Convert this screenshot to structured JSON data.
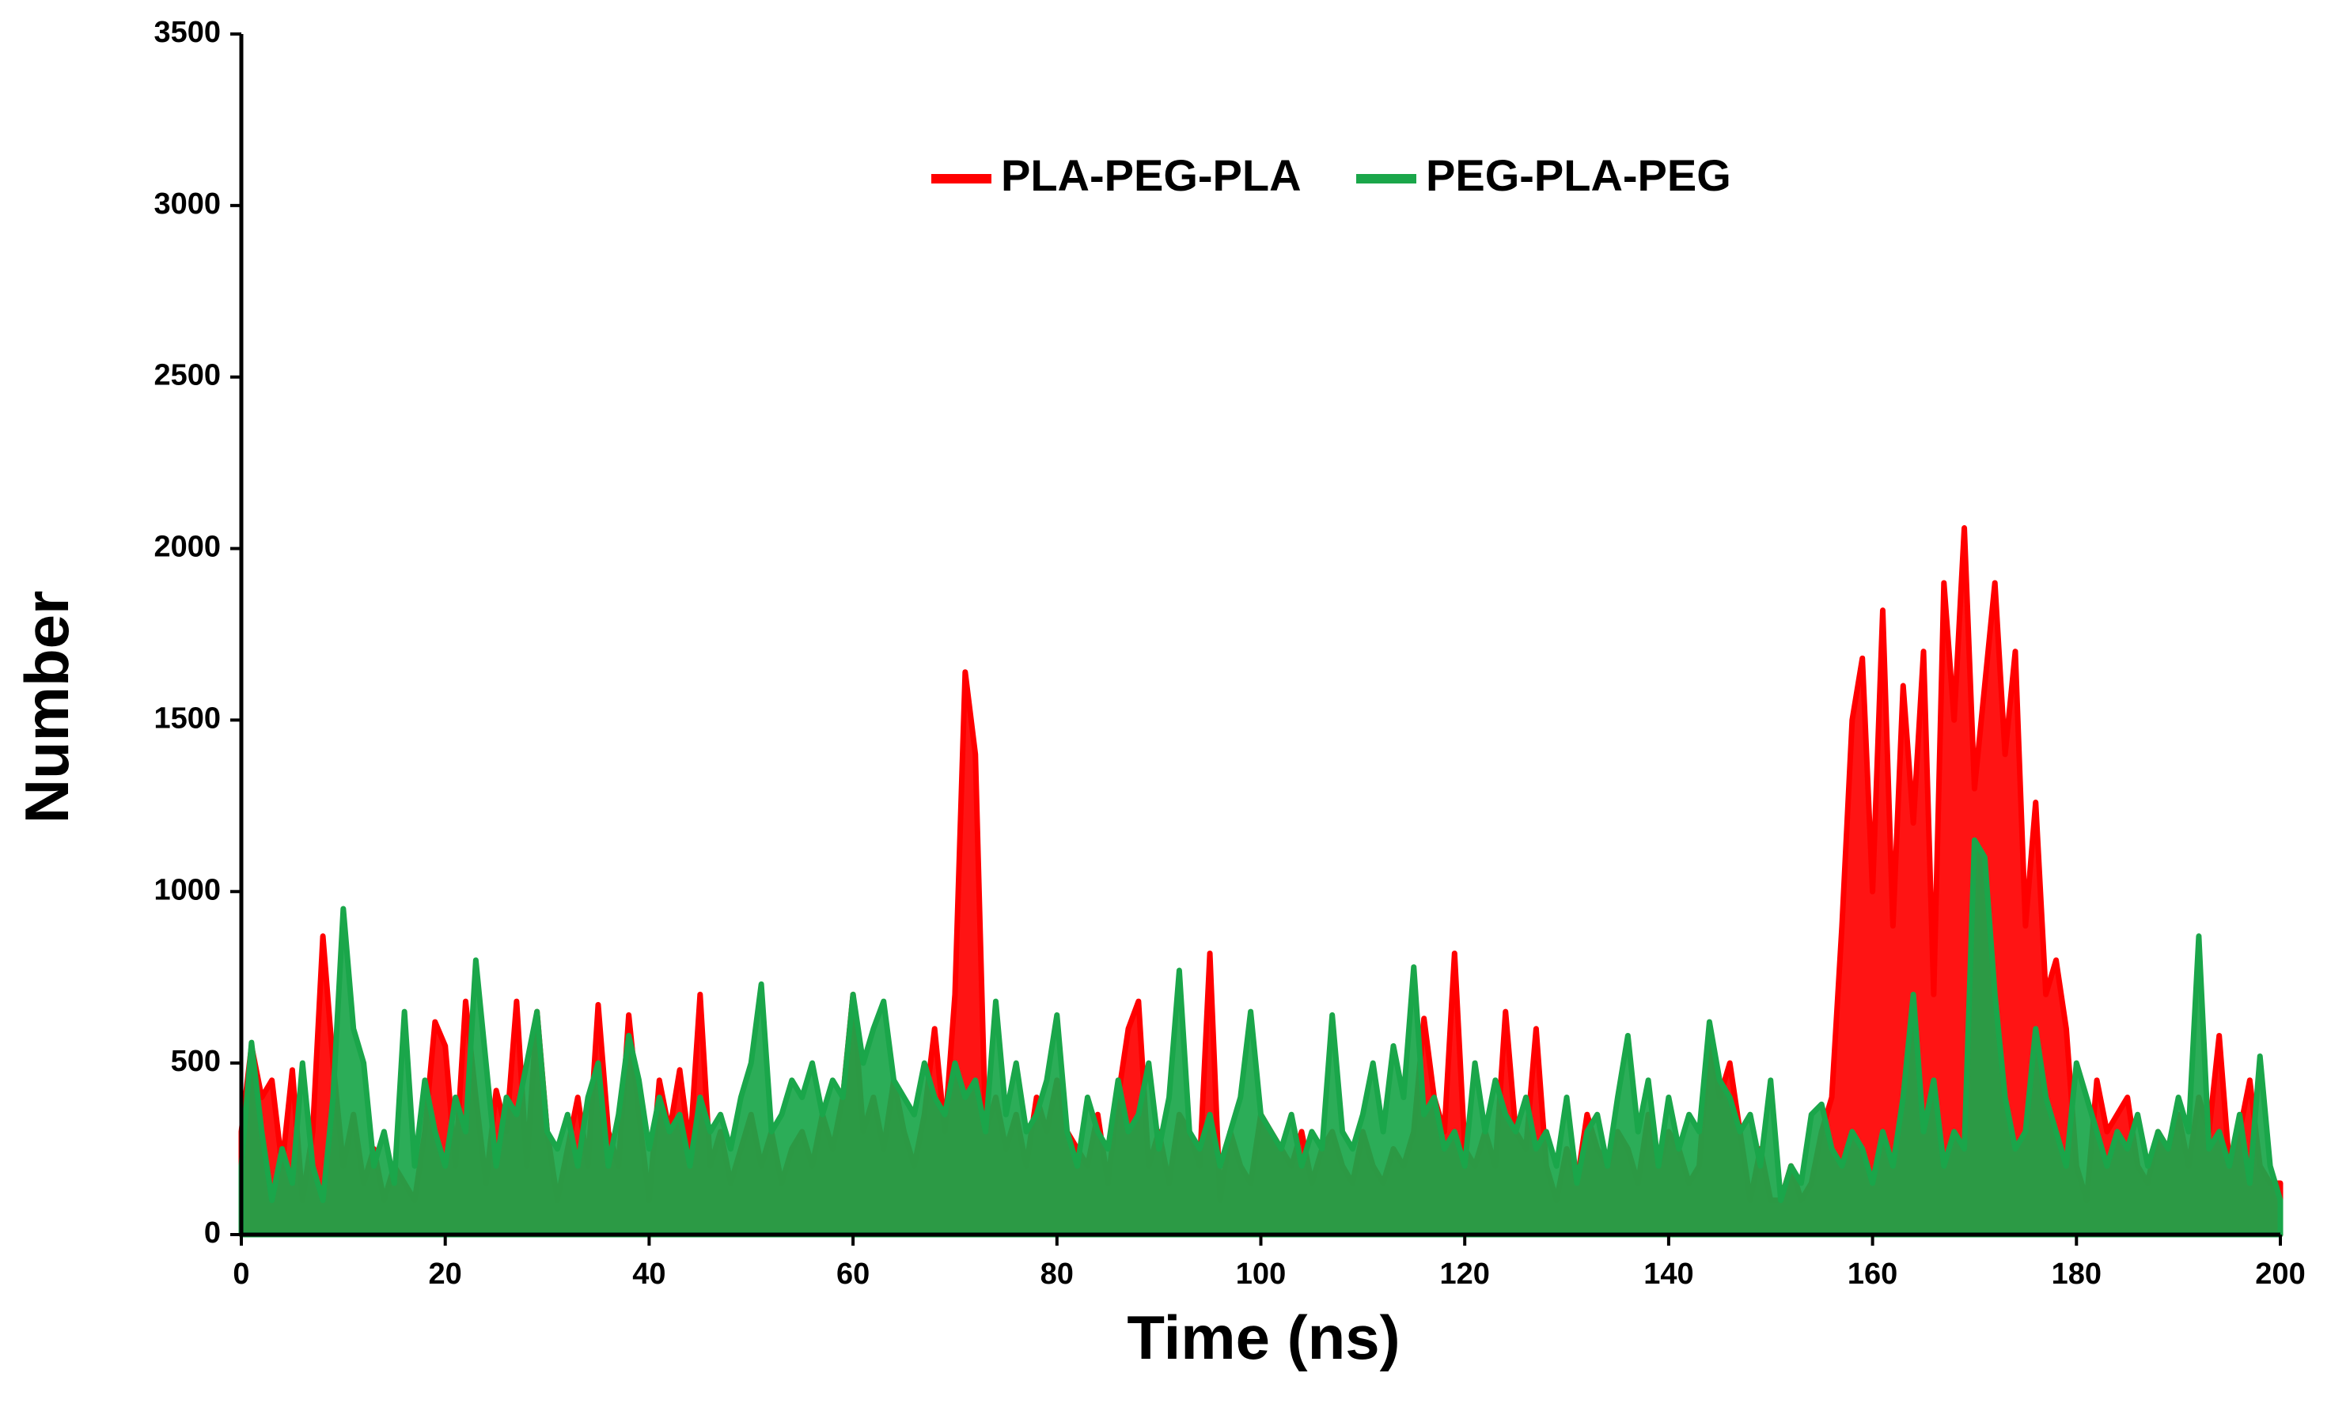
{
  "chart_data": {
    "type": "line",
    "x_label": "Time (ns)",
    "y_label": "Number",
    "xlim": [
      0,
      200
    ],
    "xticks": [
      0,
      20,
      40,
      60,
      80,
      100,
      120,
      140,
      160,
      180,
      200
    ],
    "ylim": [
      0,
      3500
    ],
    "yticks": [
      0,
      500,
      1000,
      1500,
      2000,
      2500,
      3000,
      3500
    ],
    "grid": false,
    "legend": "top",
    "x": [
      0,
      1,
      2,
      3,
      4,
      5,
      6,
      7,
      8,
      9,
      10,
      11,
      12,
      13,
      14,
      15,
      16,
      17,
      18,
      19,
      20,
      21,
      22,
      23,
      24,
      25,
      26,
      27,
      28,
      29,
      30,
      31,
      32,
      33,
      34,
      35,
      36,
      37,
      38,
      39,
      40,
      41,
      42,
      43,
      44,
      45,
      46,
      47,
      48,
      49,
      50,
      51,
      52,
      53,
      54,
      55,
      56,
      57,
      58,
      59,
      60,
      61,
      62,
      63,
      64,
      65,
      66,
      67,
      68,
      69,
      70,
      71,
      72,
      73,
      74,
      75,
      76,
      77,
      78,
      79,
      80,
      81,
      82,
      83,
      84,
      85,
      86,
      87,
      88,
      89,
      90,
      91,
      92,
      93,
      94,
      95,
      96,
      97,
      98,
      99,
      100,
      101,
      102,
      103,
      104,
      105,
      106,
      107,
      108,
      109,
      110,
      111,
      112,
      113,
      114,
      115,
      116,
      117,
      118,
      119,
      120,
      121,
      122,
      123,
      124,
      125,
      126,
      127,
      128,
      129,
      130,
      131,
      132,
      133,
      134,
      135,
      136,
      137,
      138,
      139,
      140,
      141,
      142,
      143,
      144,
      145,
      146,
      147,
      148,
      149,
      150,
      151,
      152,
      153,
      154,
      155,
      156,
      157,
      158,
      159,
      160,
      161,
      162,
      163,
      164,
      165,
      166,
      167,
      168,
      169,
      170,
      171,
      172,
      173,
      174,
      175,
      176,
      177,
      178,
      179,
      180,
      181,
      182,
      183,
      184,
      185,
      186,
      187,
      188,
      189,
      190,
      191,
      192,
      193,
      194,
      195,
      196,
      197,
      198,
      199,
      200
    ],
    "series": [
      {
        "name": "PLA-PEG-PLA",
        "color": "#ff0000",
        "values": [
          300,
          550,
          400,
          450,
          200,
          480,
          100,
          300,
          870,
          500,
          200,
          350,
          150,
          250,
          100,
          200,
          150,
          100,
          300,
          620,
          550,
          200,
          680,
          400,
          150,
          420,
          300,
          680,
          200,
          650,
          300,
          100,
          250,
          400,
          200,
          670,
          300,
          200,
          640,
          350,
          100,
          450,
          300,
          480,
          250,
          700,
          200,
          300,
          150,
          250,
          350,
          200,
          300,
          150,
          250,
          300,
          200,
          350,
          250,
          400,
          700,
          300,
          400,
          250,
          450,
          300,
          200,
          350,
          600,
          300,
          700,
          1640,
          1400,
          300,
          400,
          250,
          350,
          200,
          400,
          300,
          450,
          300,
          250,
          200,
          350,
          150,
          400,
          600,
          680,
          200,
          300,
          150,
          350,
          300,
          200,
          820,
          100,
          300,
          200,
          150,
          350,
          300,
          250,
          200,
          300,
          150,
          250,
          300,
          200,
          150,
          300,
          200,
          150,
          250,
          200,
          300,
          630,
          400,
          300,
          820,
          250,
          200,
          300,
          200,
          650,
          300,
          250,
          600,
          200,
          100,
          250,
          150,
          350,
          250,
          200,
          300,
          250,
          150,
          350,
          200,
          300,
          250,
          150,
          200,
          600,
          400,
          500,
          300,
          100,
          250,
          100,
          100,
          200,
          100,
          150,
          300,
          400,
          900,
          1500,
          1680,
          1000,
          1820,
          900,
          1600,
          1200,
          1700,
          700,
          1900,
          1500,
          2060,
          1300,
          1600,
          1900,
          1400,
          1700,
          900,
          1260,
          700,
          800,
          600,
          200,
          100,
          450,
          300,
          350,
          400,
          200,
          150,
          300,
          250,
          350,
          200,
          400,
          300,
          580,
          200,
          300,
          450,
          200,
          150,
          150
        ]
      },
      {
        "name": "PEG-PLA-PEG",
        "color": "#1aa64a",
        "values": [
          200,
          560,
          300,
          100,
          250,
          150,
          500,
          200,
          100,
          400,
          950,
          600,
          500,
          200,
          300,
          150,
          650,
          200,
          450,
          300,
          200,
          400,
          300,
          800,
          500,
          200,
          400,
          350,
          500,
          650,
          300,
          250,
          350,
          200,
          400,
          500,
          200,
          350,
          580,
          450,
          250,
          400,
          300,
          350,
          200,
          400,
          300,
          350,
          250,
          400,
          500,
          730,
          300,
          350,
          450,
          400,
          500,
          350,
          450,
          400,
          700,
          500,
          600,
          680,
          450,
          400,
          350,
          500,
          400,
          350,
          500,
          400,
          450,
          300,
          680,
          350,
          500,
          300,
          350,
          450,
          640,
          300,
          200,
          400,
          300,
          250,
          450,
          300,
          350,
          500,
          250,
          400,
          770,
          300,
          250,
          350,
          200,
          300,
          400,
          650,
          350,
          300,
          250,
          350,
          200,
          300,
          250,
          640,
          300,
          250,
          350,
          500,
          300,
          550,
          400,
          780,
          350,
          400,
          250,
          300,
          200,
          500,
          300,
          450,
          350,
          300,
          400,
          250,
          300,
          200,
          400,
          150,
          300,
          350,
          200,
          400,
          580,
          300,
          450,
          200,
          400,
          250,
          350,
          300,
          620,
          450,
          400,
          300,
          350,
          200,
          450,
          100,
          200,
          150,
          350,
          380,
          250,
          200,
          300,
          250,
          150,
          300,
          200,
          400,
          700,
          300,
          450,
          200,
          300,
          250,
          1150,
          1100,
          700,
          400,
          250,
          300,
          600,
          400,
          300,
          200,
          500,
          400,
          300,
          200,
          300,
          250,
          350,
          200,
          300,
          250,
          400,
          300,
          870,
          250,
          300,
          200,
          350,
          150,
          520,
          200,
          100
        ]
      }
    ]
  }
}
